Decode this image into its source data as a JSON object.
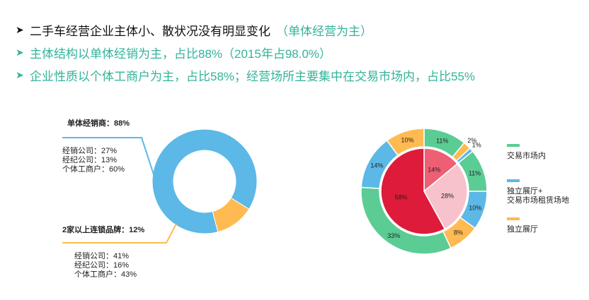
{
  "header": {
    "bullets": [
      {
        "main": "二手车经营企业主体小、散状况没有明显变化",
        "aside": "（单体经营为主）",
        "style": "dark"
      },
      {
        "main": "主体结构以单体经销为主，占比88%（2015年占98.0%）",
        "aside": "",
        "style": "green"
      },
      {
        "main": "企业性质以个体工商户为主，占比58%；经营场所主要集中在交易市场内，占比55%",
        "aside": "",
        "style": "green"
      }
    ]
  },
  "chart_data": [
    {
      "type": "pie",
      "variant": "donut",
      "title": "",
      "slices": [
        {
          "label": "单体经销商：88%",
          "value": 88,
          "color": "#5cb8e6",
          "details": [
            "经销公司：27%",
            "经纪公司：13%",
            "个体工商户：60%"
          ]
        },
        {
          "label": "2家以上连锁品牌：12%",
          "value": 12,
          "color": "#ffba52",
          "details": [
            "经销公司：41%",
            "经纪公司：16%",
            "个体工商户：43%"
          ]
        }
      ]
    },
    {
      "type": "pie",
      "variant": "nested",
      "title": "",
      "outer_ring": [
        {
          "value": 11,
          "label": "11%",
          "color": "#5bcc93"
        },
        {
          "value": 2,
          "label": "2%",
          "color": "#ffba52"
        },
        {
          "value": 1,
          "label": "1%",
          "color": "#5cb8e6"
        },
        {
          "value": 11,
          "label": "11%",
          "color": "#5bcc93"
        },
        {
          "value": 10,
          "label": "10%",
          "color": "#5cb8e6"
        },
        {
          "value": 8,
          "label": "8%",
          "color": "#ffba52"
        },
        {
          "value": 33,
          "label": "33%",
          "color": "#5bcc93"
        },
        {
          "value": 14,
          "label": "14%",
          "color": "#5cb8e6"
        },
        {
          "value": 10,
          "label": "10%",
          "color": "#ffba52"
        }
      ],
      "inner_pie": [
        {
          "value": 14,
          "label": "14%",
          "color": "#ee5f74"
        },
        {
          "value": 28,
          "label": "28%",
          "color": "#f7c2cb"
        },
        {
          "value": 58,
          "label": "58%",
          "color": "#de1b3a"
        }
      ],
      "legend": [
        {
          "label": "交易市场内",
          "color": "#5bcc93"
        },
        {
          "label": "独立展厅+\n交易市场租赁场地",
          "color": "#5cb8e6"
        },
        {
          "label": "独立展厅",
          "color": "#ffba52"
        }
      ],
      "legend_position": "right"
    }
  ]
}
